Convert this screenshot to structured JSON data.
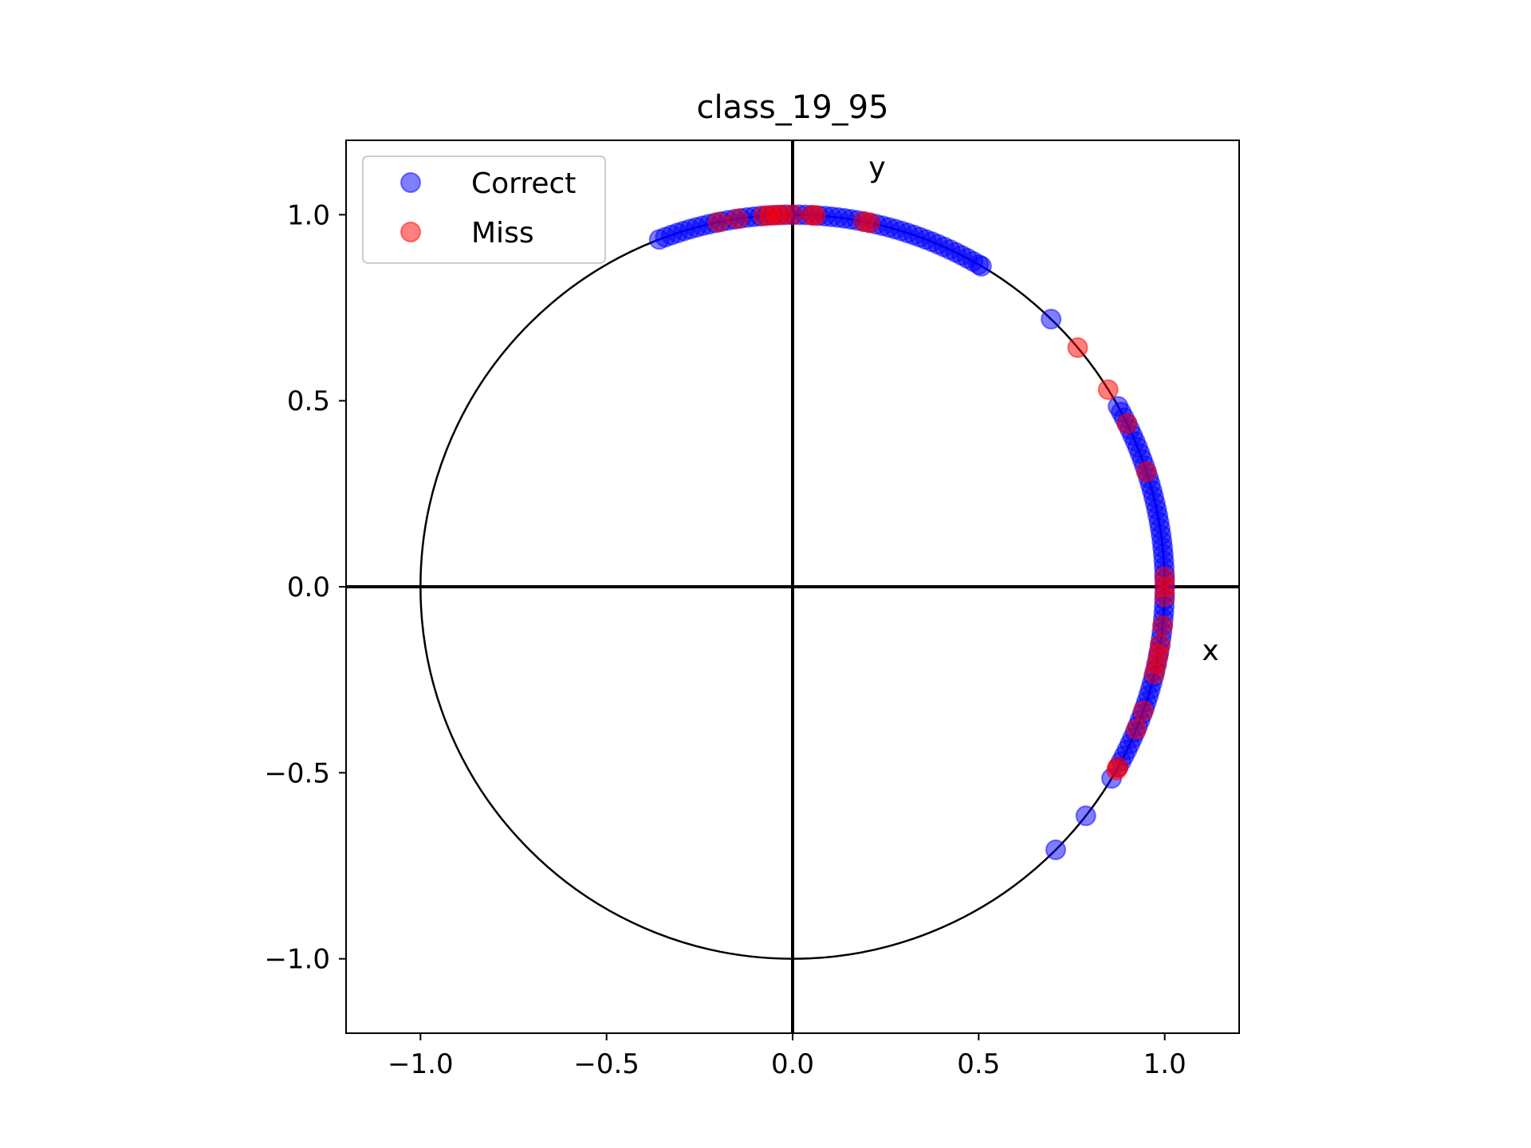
{
  "chart_data": {
    "type": "scatter",
    "title": "class_19_95",
    "xlim": [
      -1.2,
      1.2
    ],
    "ylim": [
      -1.2,
      1.2
    ],
    "xticks": [
      -1.0,
      -0.5,
      0.0,
      0.5,
      1.0
    ],
    "yticks": [
      -1.0,
      -0.5,
      0.0,
      0.5,
      1.0
    ],
    "xtick_labels": [
      "−1.0",
      "−0.5",
      "0.0",
      "0.5",
      "1.0"
    ],
    "ytick_labels": [
      "−1.0",
      "−0.5",
      "0.0",
      "0.5",
      "1.0"
    ],
    "grid": false,
    "legend_position": "upper-left",
    "unit_circle": true,
    "origin_axes": true,
    "axis_annotations": {
      "x": "x",
      "y": "y"
    },
    "series": [
      {
        "name": "Correct",
        "color": "#0000ff",
        "opacity": 0.5,
        "angles_deg": [
          111,
          110,
          109,
          108,
          107,
          106,
          105,
          104,
          103,
          102,
          101,
          100,
          99,
          98,
          97,
          96,
          95,
          94,
          93,
          92,
          91,
          90,
          89,
          88,
          87,
          86,
          85,
          84,
          83,
          82,
          81,
          80,
          79,
          78,
          77,
          76,
          75,
          74,
          73,
          72,
          71,
          70,
          69,
          68,
          67,
          66,
          65,
          64,
          63,
          62,
          61,
          60,
          59.5,
          46,
          29,
          28,
          27,
          26,
          25,
          24,
          23,
          22,
          21,
          20,
          19,
          18,
          17,
          16,
          15,
          14,
          13,
          12,
          11,
          10,
          9,
          8,
          7,
          6,
          5,
          4,
          3,
          2,
          1,
          0,
          -1,
          -2,
          -3,
          -4,
          -5,
          -6,
          -7,
          -8,
          -9,
          -10,
          -11,
          -12,
          -13,
          -14,
          -15,
          -16,
          -17,
          -18,
          -19,
          -20,
          -21,
          -22,
          -23,
          -24,
          -25,
          -26,
          -27,
          -28,
          -29,
          -31,
          -38,
          -45
        ]
      },
      {
        "name": "Miss",
        "color": "#ff0000",
        "opacity": 0.5,
        "angles_deg": [
          101.5,
          98.5,
          94.5,
          93.5,
          92.5,
          91.5,
          90,
          87,
          86.5,
          79,
          78,
          40,
          32,
          26,
          18,
          1.5,
          0,
          -1.5,
          -6,
          -9,
          -10.5,
          -12,
          -13.5,
          -19.5,
          -22.5,
          -29,
          -29.5
        ]
      }
    ]
  }
}
